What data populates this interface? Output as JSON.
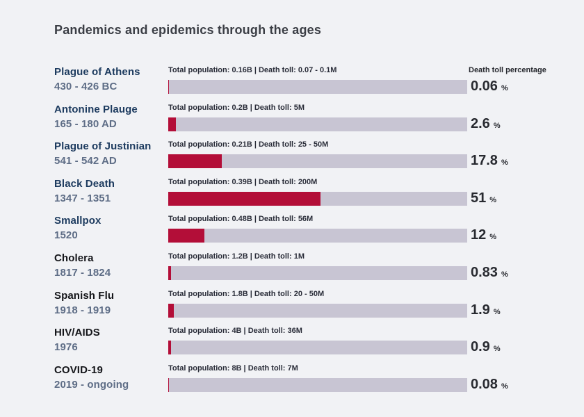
{
  "chart": {
    "title": "Pandemics and epidemics through the ages",
    "value_column_header": "Death toll percentage",
    "percent_sign": "%"
  },
  "labels": {
    "population_prefix": "Total population:",
    "death_toll_prefix": "Death toll:",
    "separator": "|"
  },
  "colors": {
    "background": "#f1f2f5",
    "bar_track": "#c8c5d3",
    "bar_fill": "#b30e38",
    "name_navy": "#1c3a5e",
    "name_dark": "#141519",
    "period_text": "#5e6d86",
    "title_text": "#3b3e45",
    "bar_label_text": "#2a2d39",
    "value_text": "#282a30"
  },
  "chart_data": {
    "type": "bar",
    "orientation": "horizontal",
    "title": "Pandemics and epidemics through the ages",
    "value_axis_label": "Death toll percentage",
    "unit": "%",
    "value_range": [
      0,
      100
    ],
    "grid": false,
    "legend": false,
    "rows": [
      {
        "name": "Plague of Athens",
        "period": "430 - 426 BC",
        "total_population": "0.16B",
        "death_toll": "0.07 - 0.1M",
        "pct": 0.06,
        "pct_display": "0.06",
        "name_style": "navy"
      },
      {
        "name": "Antonine Plauge",
        "period": "165 - 180 AD",
        "total_population": "0.2B",
        "death_toll": "5M",
        "pct": 2.6,
        "pct_display": "2.6",
        "name_style": "navy"
      },
      {
        "name": "Plague of Justinian",
        "period": "541 - 542 AD",
        "total_population": "0.21B",
        "death_toll": "25 - 50M",
        "pct": 17.8,
        "pct_display": "17.8",
        "name_style": "navy"
      },
      {
        "name": "Black Death",
        "period": "1347 - 1351",
        "total_population": "0.39B",
        "death_toll": "200M",
        "pct": 51,
        "pct_display": "51",
        "name_style": "navy"
      },
      {
        "name": "Smallpox",
        "period": "1520",
        "total_population": "0.48B",
        "death_toll": "56M",
        "pct": 12,
        "pct_display": "12",
        "name_style": "navy"
      },
      {
        "name": "Cholera",
        "period": "1817 - 1824",
        "total_population": "1.2B",
        "death_toll": "1M",
        "pct": 0.83,
        "pct_display": "0.83",
        "name_style": "dark"
      },
      {
        "name": "Spanish Flu",
        "period": "1918 - 1919",
        "total_population": "1.8B",
        "death_toll": "20 - 50M",
        "pct": 1.9,
        "pct_display": "1.9",
        "name_style": "dark"
      },
      {
        "name": "HIV/AIDS",
        "period": "1976",
        "total_population": "4B",
        "death_toll": "36M",
        "pct": 0.9,
        "pct_display": "0.9",
        "name_style": "dark"
      },
      {
        "name": "COVID-19",
        "period": "2019 - ongoing",
        "total_population": "8B",
        "death_toll": "7M",
        "pct": 0.08,
        "pct_display": "0.08",
        "name_style": "dark"
      }
    ]
  }
}
